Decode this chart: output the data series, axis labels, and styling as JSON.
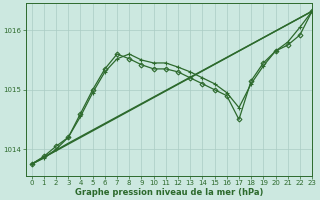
{
  "xlabel": "Graphe pression niveau de la mer (hPa)",
  "ylim": [
    1013.55,
    1016.45
  ],
  "xlim": [
    -0.5,
    23
  ],
  "yticks": [
    1014,
    1015,
    1016
  ],
  "xticks": [
    0,
    1,
    2,
    3,
    4,
    5,
    6,
    7,
    8,
    9,
    10,
    11,
    12,
    13,
    14,
    15,
    16,
    17,
    18,
    19,
    20,
    21,
    22,
    23
  ],
  "bg_color": "#cce8e0",
  "line_color": "#2d6a2d",
  "grid_color": "#aaccc4",
  "series": [
    {
      "x": [
        0,
        23
      ],
      "y": [
        1013.75,
        1016.32
      ],
      "marker": null,
      "lw": 1.0
    },
    {
      "x": [
        0,
        3,
        23
      ],
      "y": [
        1013.75,
        1014.1,
        1016.32
      ],
      "marker": null,
      "lw": 1.0
    },
    {
      "x": [
        0,
        1,
        2,
        3,
        4,
        5,
        6,
        7,
        8,
        9,
        10,
        11,
        12,
        13,
        14,
        15,
        16,
        17,
        18,
        19,
        20,
        21,
        22,
        23
      ],
      "y": [
        1013.75,
        1013.85,
        1014.0,
        1014.2,
        1014.55,
        1014.95,
        1015.3,
        1015.52,
        1015.6,
        1015.5,
        1015.45,
        1015.45,
        1015.38,
        1015.3,
        1015.2,
        1015.1,
        1014.95,
        1014.7,
        1015.1,
        1015.4,
        1015.65,
        1015.8,
        1016.05,
        1016.32
      ],
      "marker": "+",
      "lw": 0.9
    },
    {
      "x": [
        0,
        1,
        2,
        3,
        4,
        5,
        6,
        7,
        8,
        9,
        10,
        11,
        12,
        13,
        14,
        15,
        16,
        17,
        18,
        19,
        20,
        21,
        22,
        23
      ],
      "y": [
        1013.75,
        1013.88,
        1014.05,
        1014.2,
        1014.6,
        1015.0,
        1015.35,
        1015.6,
        1015.52,
        1015.42,
        1015.35,
        1015.35,
        1015.3,
        1015.2,
        1015.1,
        1015.0,
        1014.9,
        1014.5,
        1015.15,
        1015.45,
        1015.65,
        1015.75,
        1015.92,
        1016.32
      ],
      "marker": "D",
      "lw": 0.9
    }
  ]
}
